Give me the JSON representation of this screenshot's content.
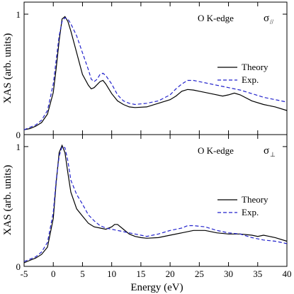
{
  "chart_data": {
    "type": "line",
    "xlabel": "Energy (eV)",
    "ylabel": "XAS (arb. units)",
    "xlim": [
      -5,
      40
    ],
    "x_ticks": [
      -5,
      0,
      5,
      10,
      15,
      20,
      25,
      30,
      35,
      40
    ],
    "x_tick_labels": [
      "-5",
      "0",
      "5",
      "10",
      "15",
      "20",
      "25",
      "30",
      "35",
      "40"
    ],
    "panels": [
      {
        "id": "top",
        "annotation": "O K-edge",
        "symbol": "σ",
        "symbol_sub": "//",
        "ylim": [
          0,
          1.1
        ],
        "y_ticks": [
          0,
          1
        ],
        "y_tick_labels": [
          "0",
          "1"
        ],
        "legend": {
          "placement": "right",
          "entries": [
            "Theory",
            "Exp."
          ]
        },
        "series": [
          {
            "name": "Theory",
            "color": "#000000",
            "dash": "solid",
            "points": [
              [
                -5,
                0.04
              ],
              [
                -4,
                0.05
              ],
              [
                -3,
                0.07
              ],
              [
                -2,
                0.1
              ],
              [
                -1,
                0.17
              ],
              [
                0,
                0.35
              ],
              [
                0.5,
                0.55
              ],
              [
                1,
                0.78
              ],
              [
                1.5,
                0.96
              ],
              [
                2,
                0.98
              ],
              [
                2.5,
                0.94
              ],
              [
                3,
                0.86
              ],
              [
                4,
                0.68
              ],
              [
                5,
                0.5
              ],
              [
                6,
                0.41
              ],
              [
                6.5,
                0.38
              ],
              [
                7,
                0.39
              ],
              [
                8,
                0.44
              ],
              [
                8.5,
                0.45
              ],
              [
                9,
                0.42
              ],
              [
                10,
                0.34
              ],
              [
                11,
                0.28
              ],
              [
                12,
                0.25
              ],
              [
                13,
                0.23
              ],
              [
                14,
                0.225
              ],
              [
                16,
                0.23
              ],
              [
                18,
                0.26
              ],
              [
                20,
                0.29
              ],
              [
                21,
                0.32
              ],
              [
                22,
                0.36
              ],
              [
                23,
                0.375
              ],
              [
                24,
                0.37
              ],
              [
                25,
                0.36
              ],
              [
                27,
                0.34
              ],
              [
                29,
                0.32
              ],
              [
                30,
                0.33
              ],
              [
                31,
                0.345
              ],
              [
                32,
                0.33
              ],
              [
                34,
                0.28
              ],
              [
                36,
                0.25
              ],
              [
                38,
                0.23
              ],
              [
                40,
                0.2
              ]
            ]
          },
          {
            "name": "Exp.",
            "color": "#2222cc",
            "dash": "dashed",
            "points": [
              [
                -5,
                0.04
              ],
              [
                -4,
                0.06
              ],
              [
                -3,
                0.08
              ],
              [
                -2,
                0.12
              ],
              [
                -1,
                0.2
              ],
              [
                0,
                0.42
              ],
              [
                0.5,
                0.62
              ],
              [
                1,
                0.82
              ],
              [
                1.5,
                0.94
              ],
              [
                2,
                0.97
              ],
              [
                2.5,
                0.96
              ],
              [
                3,
                0.92
              ],
              [
                4,
                0.82
              ],
              [
                5,
                0.68
              ],
              [
                6,
                0.54
              ],
              [
                6.5,
                0.46
              ],
              [
                7,
                0.44
              ],
              [
                7.5,
                0.46
              ],
              [
                8,
                0.5
              ],
              [
                8.5,
                0.51
              ],
              [
                9,
                0.49
              ],
              [
                10,
                0.42
              ],
              [
                11,
                0.33
              ],
              [
                12,
                0.28
              ],
              [
                13,
                0.26
              ],
              [
                14,
                0.25
              ],
              [
                16,
                0.26
              ],
              [
                18,
                0.28
              ],
              [
                20,
                0.33
              ],
              [
                21,
                0.38
              ],
              [
                22,
                0.42
              ],
              [
                23,
                0.45
              ],
              [
                24,
                0.45
              ],
              [
                26,
                0.43
              ],
              [
                28,
                0.41
              ],
              [
                30,
                0.39
              ],
              [
                32,
                0.37
              ],
              [
                34,
                0.34
              ],
              [
                36,
                0.31
              ],
              [
                38,
                0.29
              ],
              [
                40,
                0.27
              ]
            ]
          }
        ]
      },
      {
        "id": "bottom",
        "annotation": "O K-edge",
        "symbol": "σ",
        "symbol_sub": "⊥",
        "ylim": [
          0,
          1.1
        ],
        "y_ticks": [
          0,
          1
        ],
        "y_tick_labels": [
          "0",
          "1"
        ],
        "legend": {
          "placement": "right",
          "entries": [
            "Theory",
            "Exp."
          ]
        },
        "series": [
          {
            "name": "Theory",
            "color": "#000000",
            "dash": "solid",
            "points": [
              [
                -5,
                0.03
              ],
              [
                -4,
                0.05
              ],
              [
                -3,
                0.07
              ],
              [
                -2,
                0.1
              ],
              [
                -1,
                0.16
              ],
              [
                0,
                0.4
              ],
              [
                0.5,
                0.7
              ],
              [
                1,
                0.95
              ],
              [
                1.5,
                1.01
              ],
              [
                2,
                0.95
              ],
              [
                2.5,
                0.78
              ],
              [
                3,
                0.62
              ],
              [
                4,
                0.48
              ],
              [
                5,
                0.42
              ],
              [
                6,
                0.36
              ],
              [
                7,
                0.33
              ],
              [
                8,
                0.32
              ],
              [
                9,
                0.31
              ],
              [
                10,
                0.33
              ],
              [
                10.5,
                0.35
              ],
              [
                11,
                0.35
              ],
              [
                12,
                0.31
              ],
              [
                13,
                0.27
              ],
              [
                14,
                0.25
              ],
              [
                15,
                0.24
              ],
              [
                16,
                0.235
              ],
              [
                18,
                0.24
              ],
              [
                20,
                0.26
              ],
              [
                22,
                0.28
              ],
              [
                24,
                0.3
              ],
              [
                26,
                0.3
              ],
              [
                28,
                0.28
              ],
              [
                30,
                0.27
              ],
              [
                32,
                0.27
              ],
              [
                34,
                0.26
              ],
              [
                35,
                0.25
              ],
              [
                36,
                0.26
              ],
              [
                37,
                0.25
              ],
              [
                38,
                0.24
              ],
              [
                40,
                0.21
              ]
            ]
          },
          {
            "name": "Exp.",
            "color": "#2222cc",
            "dash": "dashed",
            "points": [
              [
                -5,
                0.04
              ],
              [
                -4,
                0.06
              ],
              [
                -3,
                0.08
              ],
              [
                -2,
                0.12
              ],
              [
                -1,
                0.2
              ],
              [
                0,
                0.45
              ],
              [
                0.5,
                0.72
              ],
              [
                1,
                0.92
              ],
              [
                1.5,
                1.0
              ],
              [
                2,
                0.99
              ],
              [
                2.5,
                0.88
              ],
              [
                3,
                0.72
              ],
              [
                4,
                0.6
              ],
              [
                5,
                0.52
              ],
              [
                6,
                0.43
              ],
              [
                7,
                0.38
              ],
              [
                8,
                0.34
              ],
              [
                9,
                0.32
              ],
              [
                10,
                0.31
              ],
              [
                12,
                0.29
              ],
              [
                14,
                0.27
              ],
              [
                16,
                0.25
              ],
              [
                18,
                0.27
              ],
              [
                20,
                0.3
              ],
              [
                22,
                0.32
              ],
              [
                23,
                0.34
              ],
              [
                24,
                0.34
              ],
              [
                26,
                0.33
              ],
              [
                28,
                0.3
              ],
              [
                30,
                0.28
              ],
              [
                32,
                0.27
              ],
              [
                34,
                0.24
              ],
              [
                36,
                0.22
              ],
              [
                38,
                0.21
              ],
              [
                40,
                0.19
              ]
            ]
          }
        ]
      }
    ]
  }
}
